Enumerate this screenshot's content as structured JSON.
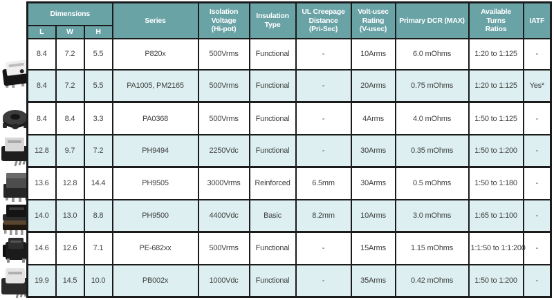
{
  "table": {
    "header": {
      "dimensions_label": "Dimensions",
      "sub_columns": [
        "L",
        "W",
        "H"
      ],
      "columns": [
        "Series",
        "Isolation\nVoltage\n(Hi-pot)",
        "Insulation\nType",
        "UL Creepage\nDistance\n(Pri-Sec)",
        "Volt-usec\nRating\n(V-usec)",
        "Primary DCR (MAX)",
        "Available Turns\nRatios",
        "IATF"
      ]
    },
    "column_keys": [
      "l",
      "w",
      "h",
      "series",
      "isolation_voltage",
      "insulation_type",
      "ul_creepage_distance",
      "volt_usec_rating",
      "primary_dcr",
      "available_turns_ratios",
      "iatf"
    ],
    "rows": [
      {
        "l": "8.4",
        "w": "7.2",
        "h": "5.5",
        "series": "P820x",
        "isolation_voltage": "500Vrms",
        "insulation_type": "Functional",
        "ul_creepage_distance": "-",
        "volt_usec_rating": "10Arms",
        "primary_dcr": "6.0 mOhms",
        "available_turns_ratios": "1:20 to 1:125",
        "iatf": "-"
      },
      {
        "l": "8.4",
        "w": "7.2",
        "h": "5.5",
        "series": "PA1005, PM2165",
        "isolation_voltage": "500Vrms",
        "insulation_type": "Functional",
        "ul_creepage_distance": "-",
        "volt_usec_rating": "20Arms",
        "primary_dcr": "0.75 mOhms",
        "available_turns_ratios": "1:20 to 1:125",
        "iatf": "Yes*"
      },
      {
        "l": "8.4",
        "w": "8.4",
        "h": "3.3",
        "series": "PA0368",
        "isolation_voltage": "500Vrms",
        "insulation_type": "Functional",
        "ul_creepage_distance": "-",
        "volt_usec_rating": "4Arms",
        "primary_dcr": "4.0 mOhms",
        "available_turns_ratios": "1:50 to 1:125",
        "iatf": "-"
      },
      {
        "l": "12.8",
        "w": "9.7",
        "h": "7.2",
        "series": "PH9494",
        "isolation_voltage": "2250Vdc",
        "insulation_type": "Functional",
        "ul_creepage_distance": "-",
        "volt_usec_rating": "30Arms",
        "primary_dcr": "0.35 mOhms",
        "available_turns_ratios": "1:50 to 1:200",
        "iatf": "-"
      },
      {
        "l": "13.6",
        "w": "12.8",
        "h": "14.4",
        "series": "PH9505",
        "isolation_voltage": "3000Vrms",
        "insulation_type": "Reinforced",
        "ul_creepage_distance": "6.5mm",
        "volt_usec_rating": "30Arms",
        "primary_dcr": "0.5 mOhms",
        "available_turns_ratios": "1:50 to 1:180",
        "iatf": "-"
      },
      {
        "l": "14.0",
        "w": "13.0",
        "h": "8.8",
        "series": "PH9500",
        "isolation_voltage": "4400Vdc",
        "insulation_type": "Basic",
        "ul_creepage_distance": "8.2mm",
        "volt_usec_rating": "10Arms",
        "primary_dcr": "3.0 mOhms",
        "available_turns_ratios": "1:65 to 1:100",
        "iatf": "-"
      },
      {
        "l": "14.6",
        "w": "12.6",
        "h": "7.1",
        "series": "PE-682xx",
        "isolation_voltage": "500Vrms",
        "insulation_type": "Functional",
        "ul_creepage_distance": "-",
        "volt_usec_rating": "15Arms",
        "primary_dcr": "1.15 mOhms",
        "available_turns_ratios": "1:1:50 to 1:1:200",
        "iatf": "-"
      },
      {
        "l": "19.9",
        "w": "14.5",
        "h": "10.0",
        "series": "PB002x",
        "isolation_voltage": "1000Vdc",
        "insulation_type": "Functional",
        "ul_creepage_distance": "-",
        "volt_usec_rating": "35Arms",
        "primary_dcr": "0.42 mOhms",
        "available_turns_ratios": "1:50 to 1:200",
        "iatf": "-"
      }
    ]
  },
  "photos": [
    {
      "name": "photo-p820x-pa1005-smd-transformer"
    },
    {
      "name": "photo-pa0368-toroid-inductor"
    },
    {
      "name": "photo-ph9494-smd-transformer"
    },
    {
      "name": "photo-ph9505-smd-transformer"
    },
    {
      "name": "photo-ph9500-stacked-transformer"
    },
    {
      "name": "photo-pe682xx-smd-transformer"
    },
    {
      "name": "photo-pb002x-smd-transformer"
    }
  ],
  "colors": {
    "header_teal": "#69a3a6",
    "row_alt_blue": "#ddeff0",
    "row_white": "#ffffff",
    "border": "#1b1b1b",
    "header_text": "#ffffff",
    "body_text": "#3f3f3f"
  }
}
